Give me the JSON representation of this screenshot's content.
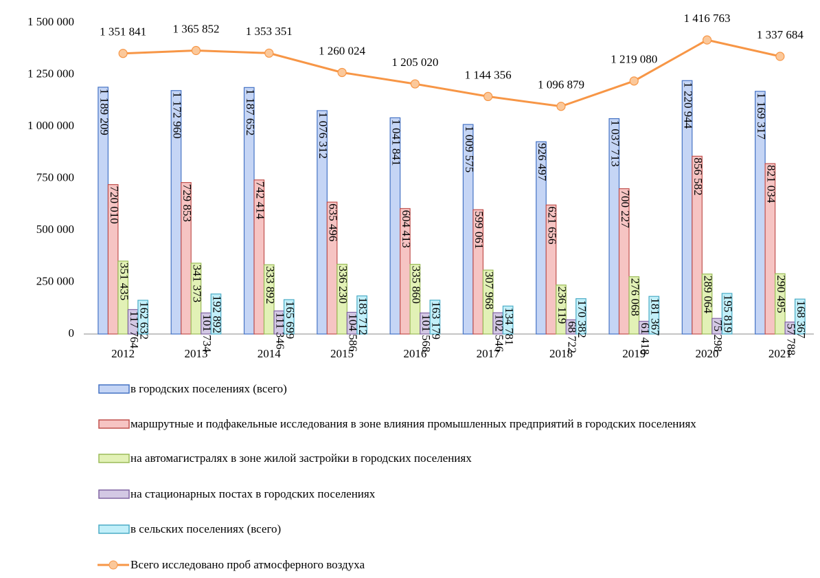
{
  "chart_data": {
    "type": "bar_line",
    "categories": [
      "2012",
      "2013",
      "2014",
      "2015",
      "2016",
      "2017",
      "2018",
      "2019",
      "2020",
      "2021"
    ],
    "ylim": [
      0,
      1500000
    ],
    "yticks": [
      0,
      {
        "value": 250000,
        "label": "250 000"
      },
      {
        "value": 500000,
        "label": "500 000"
      },
      {
        "value": 750000,
        "label": "750 000"
      },
      {
        "value": 1000000,
        "label": "1 000 000"
      },
      {
        "value": 1250000,
        "label": "1 250 000"
      },
      {
        "value": 1500000,
        "label": "1 500 000"
      }
    ],
    "grid": false,
    "series": [
      {
        "name": "в городских поселениях (всего)",
        "type": "bar",
        "color": "#c5d5f5",
        "edge": "#4472c4",
        "values": [
          1189209,
          1172960,
          1187652,
          1076312,
          1041841,
          1009575,
          926497,
          1037713,
          1220944,
          1169317
        ],
        "value_labels": [
          "1 189 209",
          "1 172 960",
          "1 187 652",
          "1 076 312",
          "1 041 841",
          "1 009 575",
          "926 497",
          "1 037 713",
          "1 220 944",
          "1 169 317"
        ]
      },
      {
        "name": "маршрутные и подфакельные исследования в зоне влияния промышленных предприятий в городских поселениях",
        "type": "bar",
        "color": "#f6c4c3",
        "edge": "#c0504d",
        "values": [
          720010,
          729853,
          742414,
          635496,
          604413,
          599061,
          621656,
          700227,
          856582,
          821034
        ],
        "value_labels": [
          "720 010",
          "729 853",
          "742 414",
          "635 496",
          "604 413",
          "599 061",
          "621 656",
          "700 227",
          "856 582",
          "821 034"
        ]
      },
      {
        "name": "на автомагистралях в зоне жилой застройки в городских поселениях",
        "type": "bar",
        "color": "#e2f1b6",
        "edge": "#9bbb59",
        "values": [
          351435,
          341373,
          333892,
          336230,
          335860,
          307968,
          236119,
          276068,
          289064,
          290495
        ],
        "value_labels": [
          "351 435",
          "341 373",
          "333 892",
          "336 230",
          "335 860",
          "307 968",
          "236 119",
          "276 068",
          "289 064",
          "290 495"
        ]
      },
      {
        "name": "на стационарных постах в городских поселениях",
        "type": "bar",
        "color": "#d3c8e4",
        "edge": "#8064a2",
        "values": [
          117764,
          101734,
          111346,
          104586,
          101568,
          102546,
          68722,
          61418,
          75298,
          57788
        ],
        "value_labels": [
          "117 764",
          "101 734",
          "111 346",
          "104 586",
          "101 568",
          "102 546",
          "68 722",
          "61 418",
          "75 298",
          "57 788"
        ]
      },
      {
        "name": "в сельских поселениях (всего)",
        "type": "bar",
        "color": "#c2eff9",
        "edge": "#4bacc6",
        "values": [
          162632,
          192892,
          165699,
          183712,
          163179,
          134781,
          170382,
          181367,
          195819,
          168367
        ],
        "value_labels": [
          "162 632",
          "192 892",
          "165 699",
          "183 712",
          "163 179",
          "134 781",
          "170 382",
          "181 367",
          "195 819",
          "168 367"
        ]
      },
      {
        "name": "Всего исследовано проб атмосферного воздуха",
        "type": "line",
        "color": "#f79646",
        "marker": "#fbc89a",
        "values": [
          1351841,
          1365852,
          1353351,
          1260024,
          1205020,
          1144356,
          1096879,
          1219080,
          1416763,
          1337684
        ],
        "value_labels": [
          "1 351 841",
          "1 365 852",
          "1 353 351",
          "1 260 024",
          "1 205 020",
          "1 144 356",
          "1 096 879",
          "1 219 080",
          "1 416 763",
          "1 337 684"
        ]
      }
    ]
  }
}
